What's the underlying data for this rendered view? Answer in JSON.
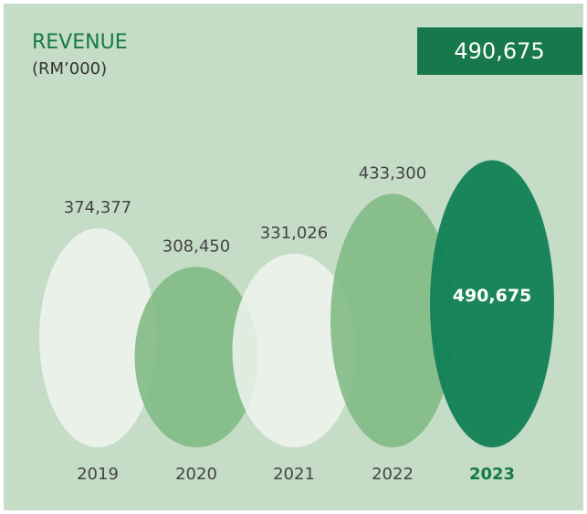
{
  "chart_data": {
    "type": "ellipse-bar",
    "title": "REVENUE",
    "subtitle": "(RM’000)",
    "categories": [
      "2019",
      "2020",
      "2021",
      "2022",
      "2023"
    ],
    "values": [
      374377,
      308450,
      331026,
      433300,
      490675
    ],
    "value_labels": [
      "374,377",
      "308,450",
      "331,026",
      "433,300",
      "490,675"
    ],
    "colors": [
      "#eef4ee",
      "#7db781",
      "#eef4ee",
      "#7db781",
      "#117f55"
    ]
  }
}
